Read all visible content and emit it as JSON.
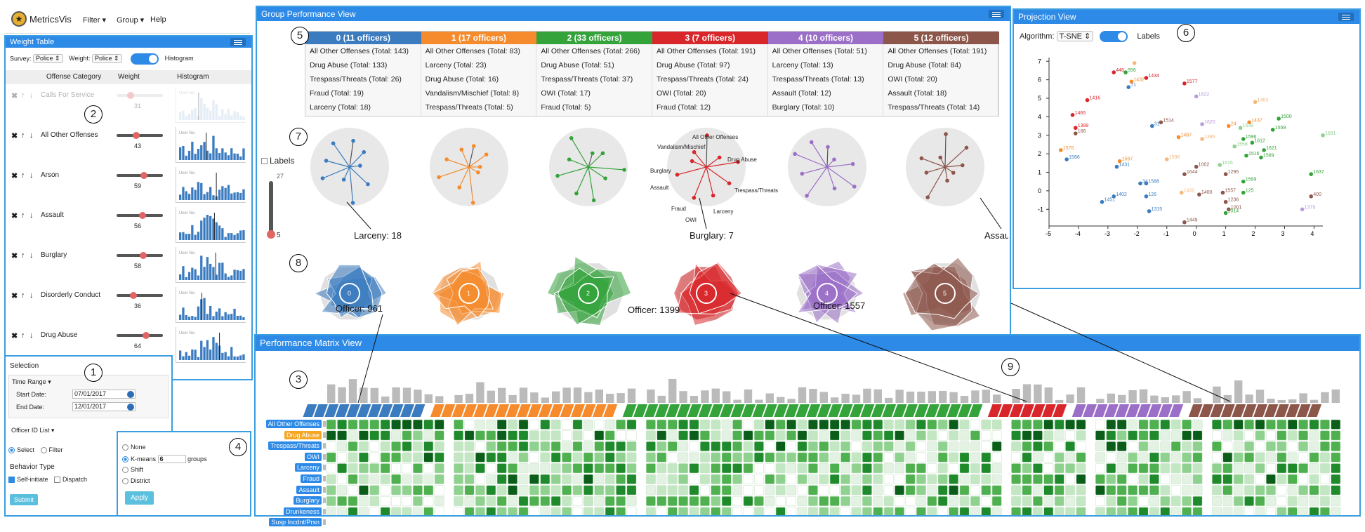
{
  "app": {
    "title": "MetricsVis",
    "menu": [
      "Filter ▾",
      "Group ▾",
      "Help"
    ]
  },
  "markers": [
    "1",
    "2",
    "3",
    "4",
    "5",
    "6",
    "7",
    "8",
    "9"
  ],
  "weight_table": {
    "title": "Weight Table",
    "survey_label": "Survey:",
    "survey_value": "Police",
    "weight_label": "Weight:",
    "weight_value": "Police",
    "histogram_label": "Histogram",
    "col_category": "Offense Category",
    "col_weight": "Weight",
    "col_histogram": "Histogram",
    "rows": [
      {
        "label": "Calls For Service",
        "value": "31",
        "weight": 0.31,
        "muted": true
      },
      {
        "label": "All Other Offenses",
        "value": "43",
        "weight": 0.43,
        "muted": false
      },
      {
        "label": "Arson",
        "value": "59",
        "weight": 0.59,
        "muted": false
      },
      {
        "label": "Assault",
        "value": "56",
        "weight": 0.56,
        "muted": false
      },
      {
        "label": "Burglary",
        "value": "58",
        "weight": 0.58,
        "muted": false
      },
      {
        "label": "Disorderly Conduct",
        "value": "36",
        "weight": 0.36,
        "muted": false
      },
      {
        "label": "Drug Abuse",
        "value": "64",
        "weight": 0.64,
        "muted": false
      }
    ],
    "hist_axis": {
      "left": "User No.",
      "right": "100"
    }
  },
  "selection": {
    "title": "Selection",
    "time_range": "Time Range ▾",
    "start_label": "Start Date:",
    "start_value": "07/01/2017",
    "end_label": "End Date:",
    "end_value": "12/01/2017",
    "officer_list": "Officer ID List ▾",
    "opt_select": "Select",
    "opt_filter": "Filter",
    "behavior_title": "Behavior Type",
    "self_initiate": "Self-initiate",
    "dispatch": "Dispatch",
    "submit": "Submit"
  },
  "grouping": {
    "opt_none": "None",
    "opt_kmeans": "K-means",
    "kmeans_value": "6",
    "groups_suffix": "groups",
    "opt_shift": "Shift",
    "opt_district": "District",
    "apply": "Apply"
  },
  "group_view": {
    "title": "Group Performance View",
    "groups": [
      {
        "head": "0 (11 officers)",
        "color": "#3b7bbf",
        "lines": [
          "All Other Offenses (Total: 143)",
          "Drug Abuse (Total: 133)",
          "Trespass/Threats (Total: 26)",
          "Fraud (Total: 19)",
          "Larceny (Total: 18)"
        ]
      },
      {
        "head": "1 (17 officers)",
        "color": "#f58b2c",
        "lines": [
          "All Other Offenses (Total: 83)",
          "Larceny (Total: 23)",
          "Drug Abuse (Total: 16)",
          "Vandalism/Mischief (Total: 8)",
          "Trespass/Threats (Total: 5)"
        ]
      },
      {
        "head": "2 (33 officers)",
        "color": "#33a33a",
        "lines": [
          "All Other Offenses (Total: 266)",
          "Drug Abuse (Total: 51)",
          "Trespass/Threats (Total: 37)",
          "OWI (Total: 17)",
          "Fraud (Total: 5)"
        ]
      },
      {
        "head": "3 (7 officers)",
        "color": "#d9262a",
        "lines": [
          "All Other Offenses (Total: 191)",
          "Drug Abuse (Total: 97)",
          "Trespass/Threats (Total: 24)",
          "OWI (Total: 20)",
          "Fraud (Total: 12)"
        ]
      },
      {
        "head": "4 (10 officers)",
        "color": "#9b6fc8",
        "lines": [
          "All Other Offenses (Total: 51)",
          "Larceny (Total: 13)",
          "Trespass/Threats (Total: 13)",
          "Assault (Total: 12)",
          "Burglary (Total: 10)"
        ]
      },
      {
        "head": "5 (12 officers)",
        "color": "#8c564b",
        "lines": [
          "All Other Offenses (Total: 191)",
          "Drug Abuse (Total: 84)",
          "OWI (Total: 20)",
          "Assault (Total: 18)",
          "Trespass/Threats (Total: 14)"
        ]
      }
    ],
    "labels_checkbox": "Labels",
    "scale_max": "27",
    "scale_min": "5",
    "radial_labels": [
      "All Other Offenses",
      "Vandalism/Mischief",
      "Drug Abuse",
      "Burglary",
      "Assault",
      "Trespass/Threats",
      "Fraud",
      "Larceny",
      "OWI"
    ],
    "annotations": [
      "Larceny: 18",
      "Burglary: 7",
      "Assault: 18"
    ],
    "officer_annotations": [
      "Officer: 961",
      "Officer: 1399",
      "Officer: 1557"
    ],
    "glyph_labels": [
      "0",
      "1",
      "2",
      "3",
      "4",
      "5"
    ]
  },
  "projection": {
    "title": "Projection View",
    "algo_label": "Algorithm:",
    "algo_value": "T-SNE",
    "labels": "Labels",
    "x_ticks": [
      "-5",
      "-4",
      "-3",
      "-2",
      "-1",
      "0",
      "1",
      "2",
      "3",
      "4"
    ],
    "y_ticks": [
      "7",
      "6",
      "5",
      "4",
      "3",
      "2",
      "1",
      "0",
      "-1"
    ],
    "points": [
      {
        "x": -2.1,
        "y": 6.9,
        "c": "#f5b77a",
        "l": ""
      },
      {
        "x": -2.8,
        "y": 6.4,
        "c": "#d9262a",
        "l": "446"
      },
      {
        "x": -2.4,
        "y": 6.4,
        "c": "#33a33a",
        "l": "556"
      },
      {
        "x": -1.7,
        "y": 6.1,
        "c": "#d9262a",
        "l": "1434"
      },
      {
        "x": -2.2,
        "y": 5.9,
        "c": "#f58b2c",
        "l": "1432"
      },
      {
        "x": -0.4,
        "y": 5.8,
        "c": "#d9262a",
        "l": "1577"
      },
      {
        "x": -2.3,
        "y": 5.6,
        "c": "#3b7bbf",
        "l": "71"
      },
      {
        "x": 0.0,
        "y": 5.1,
        "c": "#b79ddb",
        "l": "1622"
      },
      {
        "x": -3.7,
        "y": 4.9,
        "c": "#d9262a",
        "l": "1416"
      },
      {
        "x": 2.0,
        "y": 4.8,
        "c": "#f5b77a",
        "l": "1463"
      },
      {
        "x": -4.2,
        "y": 4.1,
        "c": "#d9262a",
        "l": "1465"
      },
      {
        "x": 2.8,
        "y": 3.9,
        "c": "#33a33a",
        "l": "1500"
      },
      {
        "x": -1.2,
        "y": 3.7,
        "c": "#8c564b",
        "l": "1514"
      },
      {
        "x": 0.2,
        "y": 3.6,
        "c": "#b79ddb",
        "l": "1620"
      },
      {
        "x": 1.8,
        "y": 3.7,
        "c": "#f58b2c",
        "l": "1437"
      },
      {
        "x": -4.1,
        "y": 3.4,
        "c": "#d9262a",
        "l": "1399"
      },
      {
        "x": -1.5,
        "y": 3.5,
        "c": "#3b7bbf",
        "l": "31"
      },
      {
        "x": 1.1,
        "y": 3.5,
        "c": "#f58b2c",
        "l": "24"
      },
      {
        "x": 1.5,
        "y": 3.4,
        "c": "#8fd18f",
        "l": "1539"
      },
      {
        "x": 2.6,
        "y": 3.3,
        "c": "#33a33a",
        "l": "1559"
      },
      {
        "x": -4.1,
        "y": 3.1,
        "c": "#8c564b",
        "l": "166"
      },
      {
        "x": 4.3,
        "y": 3.0,
        "c": "#8fd18f",
        "l": "1681"
      },
      {
        "x": -0.6,
        "y": 2.9,
        "c": "#f58b2c",
        "l": "1487"
      },
      {
        "x": 0.2,
        "y": 2.8,
        "c": "#f5b77a",
        "l": "1386"
      },
      {
        "x": 1.6,
        "y": 2.8,
        "c": "#33a33a",
        "l": "1596"
      },
      {
        "x": 1.9,
        "y": 2.6,
        "c": "#33a33a",
        "l": "1612"
      },
      {
        "x": -4.6,
        "y": 2.2,
        "c": "#f58b2c",
        "l": "1576"
      },
      {
        "x": 1.3,
        "y": 2.4,
        "c": "#8fd18f",
        "l": "1558"
      },
      {
        "x": 2.3,
        "y": 2.2,
        "c": "#33a33a",
        "l": "1621"
      },
      {
        "x": -4.4,
        "y": 1.7,
        "c": "#3b7bbf",
        "l": "1566"
      },
      {
        "x": -2.6,
        "y": 1.6,
        "c": "#f58b2c",
        "l": "1597"
      },
      {
        "x": -1.0,
        "y": 1.7,
        "c": "#f5b77a",
        "l": "1598"
      },
      {
        "x": 1.7,
        "y": 1.9,
        "c": "#33a33a",
        "l": "1516"
      },
      {
        "x": 2.2,
        "y": 1.8,
        "c": "#33a33a",
        "l": "1589"
      },
      {
        "x": -2.7,
        "y": 1.3,
        "c": "#3b7bbf",
        "l": "1431"
      },
      {
        "x": 0.8,
        "y": 1.4,
        "c": "#8fd18f",
        "l": "1616"
      },
      {
        "x": 0.0,
        "y": 1.3,
        "c": "#8c564b",
        "l": "1002"
      },
      {
        "x": -0.4,
        "y": 0.9,
        "c": "#8c564b",
        "l": "1644"
      },
      {
        "x": 1.0,
        "y": 0.9,
        "c": "#8c564b",
        "l": "1295"
      },
      {
        "x": 3.9,
        "y": 0.9,
        "c": "#33a33a",
        "l": "1637"
      },
      {
        "x": -1.7,
        "y": 0.4,
        "c": "#3b7bbf",
        "l": "1588"
      },
      {
        "x": -1.9,
        "y": 0.4,
        "c": "#3b7bbf",
        "l": "34"
      },
      {
        "x": 1.6,
        "y": 0.5,
        "c": "#33a33a",
        "l": "1599"
      },
      {
        "x": -2.8,
        "y": -0.3,
        "c": "#3b7bbf",
        "l": "1402"
      },
      {
        "x": -1.7,
        "y": -0.3,
        "c": "#3b7bbf",
        "l": "126"
      },
      {
        "x": -0.5,
        "y": -0.1,
        "c": "#f5b77a",
        "l": "1432"
      },
      {
        "x": 0.1,
        "y": -0.2,
        "c": "#8c564b",
        "l": "1400"
      },
      {
        "x": 0.9,
        "y": -0.1,
        "c": "#8c564b",
        "l": "1557"
      },
      {
        "x": 1.6,
        "y": -0.1,
        "c": "#33a33a",
        "l": "125"
      },
      {
        "x": 3.9,
        "y": -0.3,
        "c": "#8c564b",
        "l": "400"
      },
      {
        "x": -3.2,
        "y": -0.6,
        "c": "#3b7bbf",
        "l": "1451"
      },
      {
        "x": 1.0,
        "y": -0.6,
        "c": "#8c564b",
        "l": "1236"
      },
      {
        "x": -1.6,
        "y": -1.1,
        "c": "#3b7bbf",
        "l": "1315"
      },
      {
        "x": 1.1,
        "y": -1.0,
        "c": "#8c564b",
        "l": "1001"
      },
      {
        "x": 1.0,
        "y": -1.2,
        "c": "#33a33a",
        "l": "1014"
      },
      {
        "x": 3.6,
        "y": -1.0,
        "c": "#b79ddb",
        "l": "1379"
      },
      {
        "x": -0.4,
        "y": -1.7,
        "c": "#8c564b",
        "l": "1449"
      }
    ]
  },
  "matrix": {
    "title": "Performance Matrix View",
    "rows": [
      {
        "label": "All Other Offenses",
        "color": "#2d8ae6"
      },
      {
        "label": "Drug Abuse",
        "color": "#f5a623"
      },
      {
        "label": "Trespass/Threats",
        "color": "#2d8ae6"
      },
      {
        "label": "OWI",
        "color": "#2d8ae6"
      },
      {
        "label": "Larceny",
        "color": "#2d8ae6"
      },
      {
        "label": "Fraud",
        "color": "#2d8ae6"
      },
      {
        "label": "Assault",
        "color": "#2d8ae6"
      },
      {
        "label": "Burglary",
        "color": "#2d8ae6"
      },
      {
        "label": "Drunkeness",
        "color": "#2d8ae6"
      },
      {
        "label": "Susp Incdnt/Prsn",
        "color": "#2d8ae6"
      }
    ],
    "group_sizes": [
      11,
      17,
      33,
      7,
      10,
      12
    ],
    "group_colors": [
      "#3b7bbf",
      "#f58b2c",
      "#33a33a",
      "#d9262a",
      "#9b6fc8",
      "#8c564b"
    ]
  }
}
